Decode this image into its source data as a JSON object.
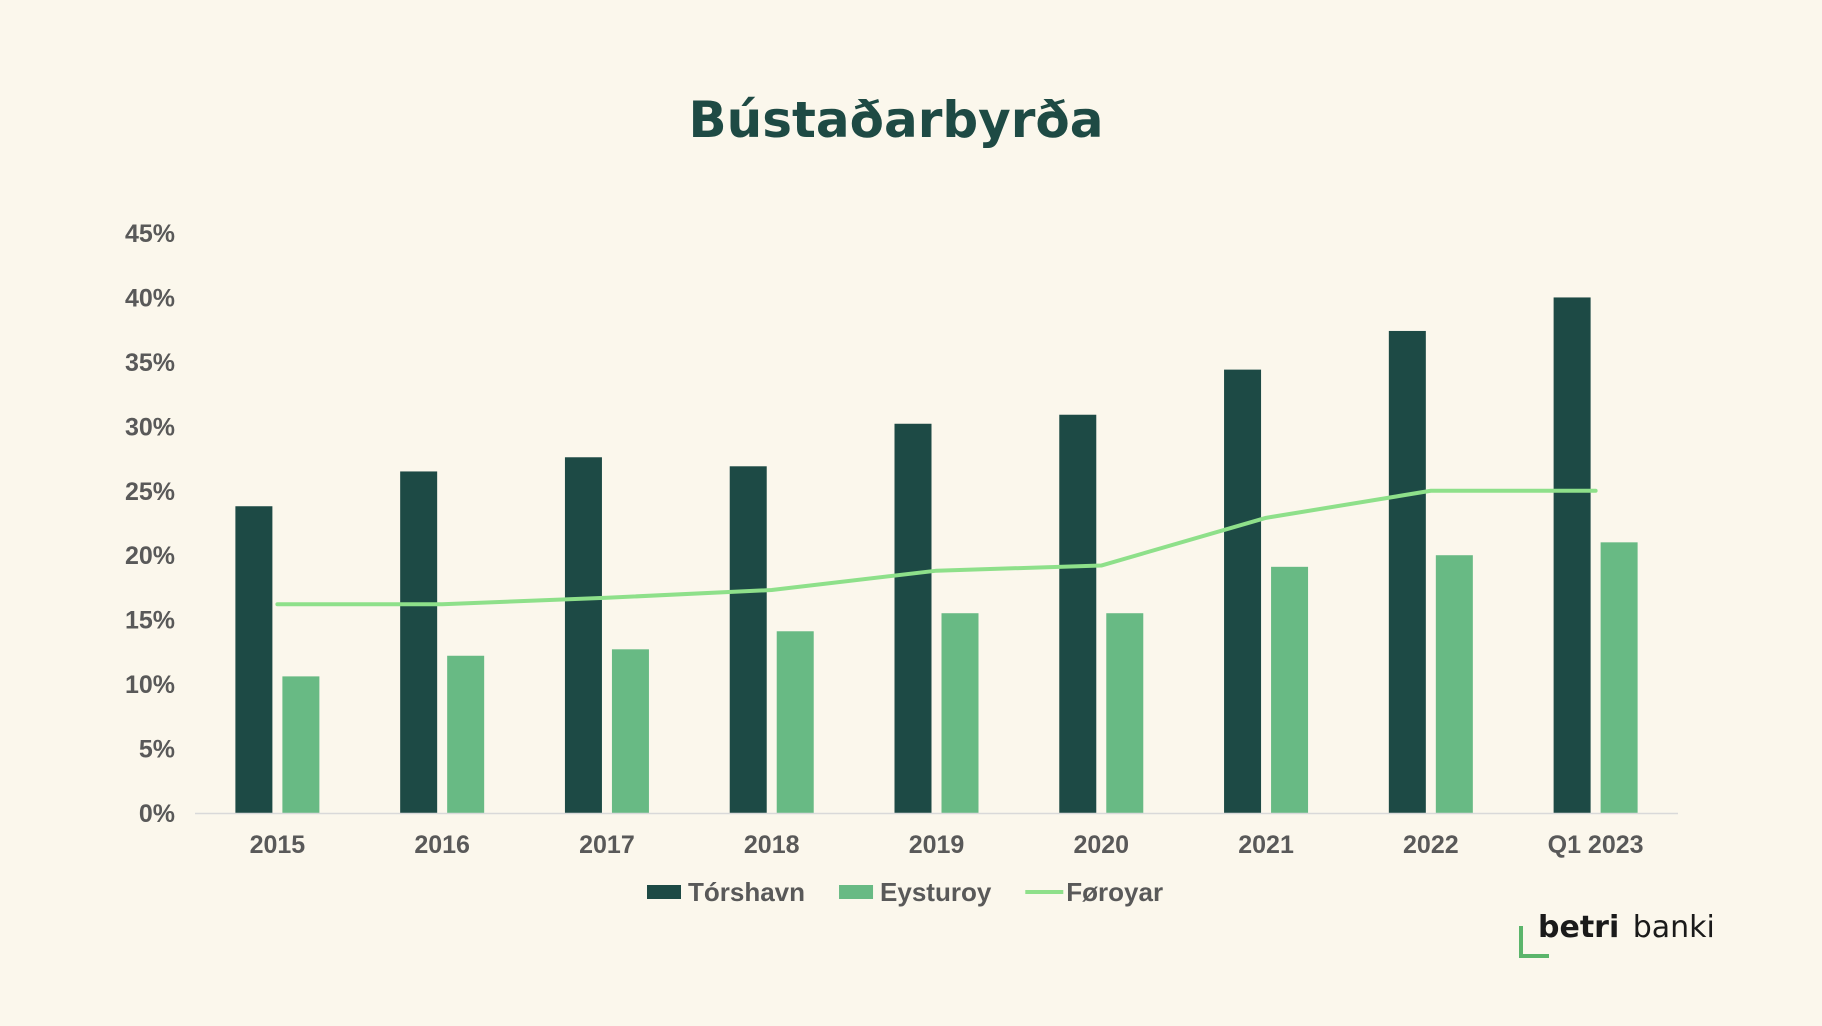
{
  "chart_data": {
    "type": "bar",
    "title": "Bústaðarbyrða",
    "xlabel": "",
    "ylabel": "",
    "ylim": [
      0,
      45
    ],
    "y_tick_step": 5,
    "y_tick_format": "percent",
    "grid": false,
    "legend_position": "bottom",
    "categories": [
      "2015",
      "2016",
      "2017",
      "2018",
      "2019",
      "2020",
      "2021",
      "2022",
      "Q1 2023"
    ],
    "series": [
      {
        "name": "Tórshavn",
        "kind": "bar",
        "color": "#1D4A45",
        "values": [
          23.8,
          26.5,
          27.6,
          26.9,
          30.2,
          30.9,
          34.4,
          37.4,
          40.0
        ]
      },
      {
        "name": "Eysturoy",
        "kind": "bar",
        "color": "#68BA84",
        "values": [
          10.6,
          12.2,
          12.7,
          14.1,
          15.5,
          15.5,
          19.1,
          20.0,
          21.0
        ]
      },
      {
        "name": "Føroyar",
        "kind": "line",
        "color": "#8EE08A",
        "values": [
          16.2,
          16.2,
          16.7,
          17.3,
          18.8,
          19.2,
          22.9,
          25.0,
          25.0
        ]
      }
    ]
  },
  "brand": {
    "bold": "betri",
    "normal": "banki",
    "accent_color": "#5BB56B"
  },
  "colors": {
    "background": "#FBF7EC",
    "title": "#1E4A44",
    "text": "#595959",
    "axis": "#D9D9D9"
  }
}
